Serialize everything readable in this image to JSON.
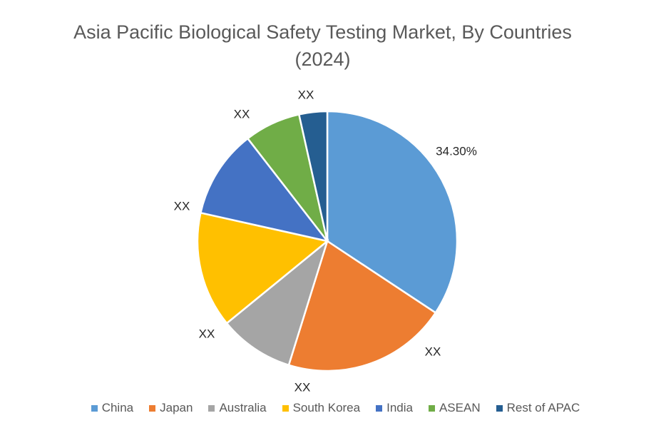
{
  "chart_data": {
    "type": "pie",
    "title_line1": "Asia Pacific Biological Safety Testing Market, By Countries",
    "title_line2": "(2024)",
    "legend_position": "bottom",
    "slices": [
      {
        "name": "China",
        "value": 34.3,
        "label": "34.30%",
        "color": "#5b9bd5"
      },
      {
        "name": "Japan",
        "value": 20.5,
        "label": "XX",
        "color": "#ed7d31"
      },
      {
        "name": "Australia",
        "value": 9.3,
        "label": "XX",
        "color": "#a5a5a5"
      },
      {
        "name": "South Korea",
        "value": 14.4,
        "label": "XX",
        "color": "#ffc000"
      },
      {
        "name": "India",
        "value": 11.0,
        "label": "XX",
        "color": "#4472c4"
      },
      {
        "name": "ASEAN",
        "value": 7.0,
        "label": "XX",
        "color": "#70ad47"
      },
      {
        "name": "Rest of APAC",
        "value": 3.5,
        "label": "XX",
        "color": "#255e91"
      }
    ]
  }
}
